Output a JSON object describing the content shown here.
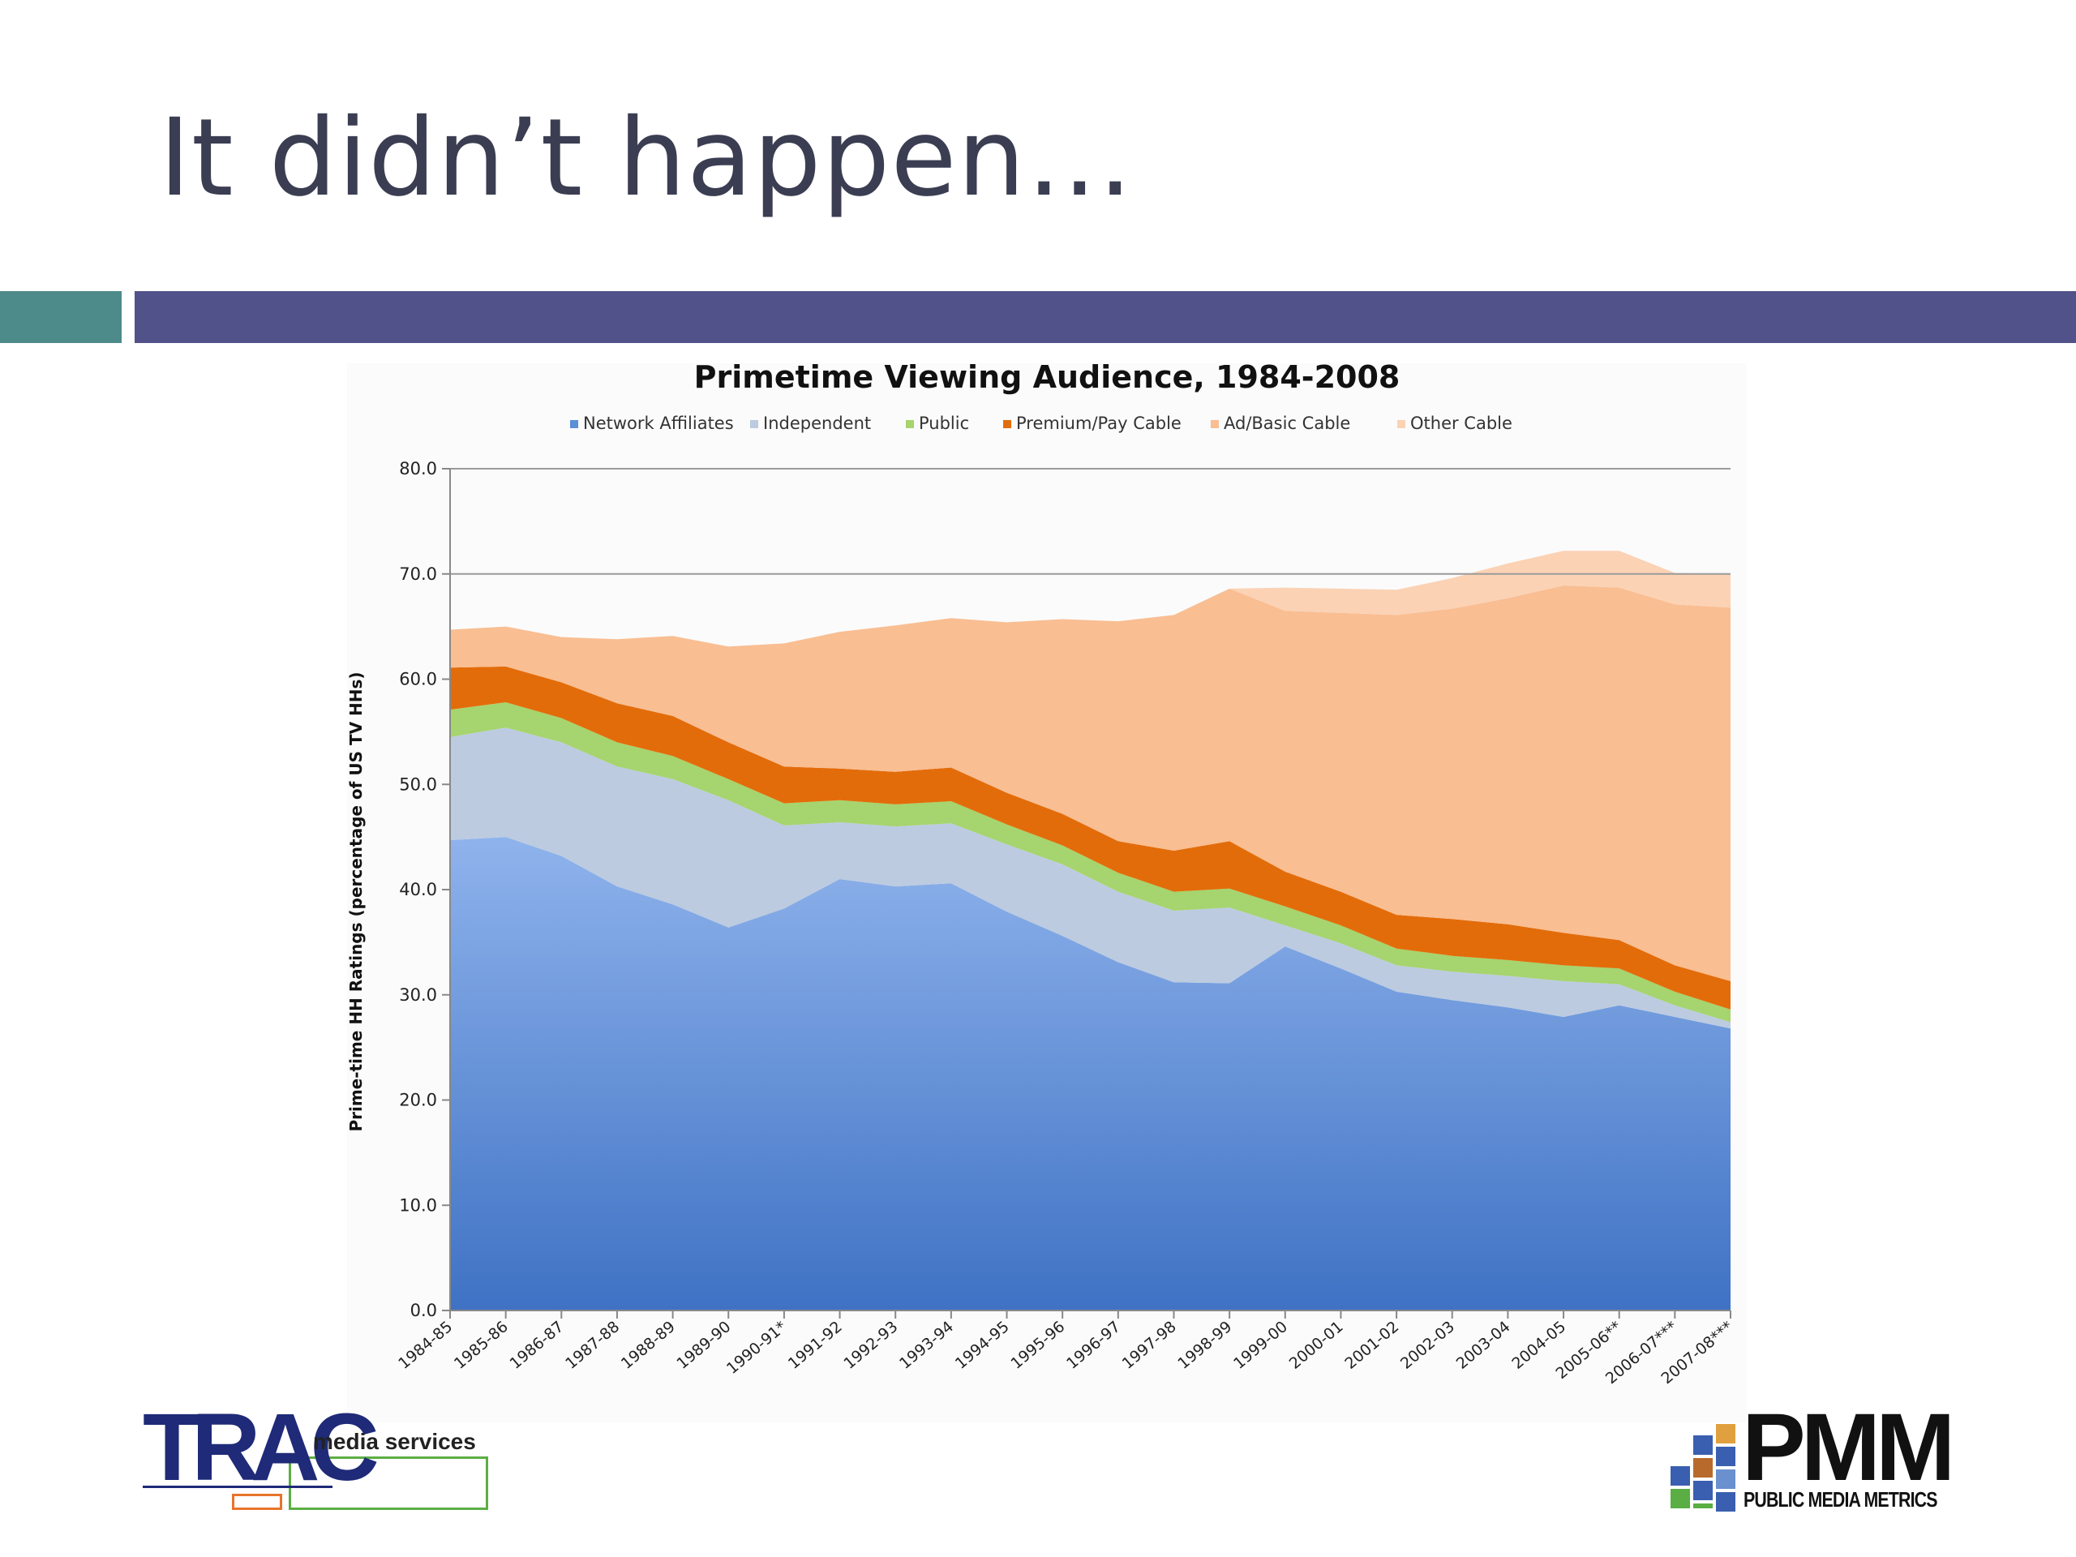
{
  "slide": {
    "title": "It didn’t happen…"
  },
  "colors": {
    "title_text": "#3b3d52",
    "teal_bar": "#4d8a8a",
    "navy_bar": "#52528a"
  },
  "chart_data": {
    "type": "area",
    "stacked": true,
    "title": "Primetime Viewing Audience, 1984-2008",
    "ylabel": "Prime-time HH Ratings (percentage of US TV HHs)",
    "xlabel": "",
    "ylim": [
      0,
      80
    ],
    "yticks": [
      "0.0",
      "10.0",
      "20.0",
      "30.0",
      "40.0",
      "50.0",
      "60.0",
      "70.0",
      "80.0"
    ],
    "ytick_values": [
      0,
      10,
      20,
      30,
      40,
      50,
      60,
      70,
      80
    ],
    "grid_major": [
      70,
      80
    ],
    "legend_position": "top",
    "categories": [
      "1984-85",
      "1985-86",
      "1986-87",
      "1987-88",
      "1988-89",
      "1989-90",
      "1990-91*",
      "1991-92",
      "1992-93",
      "1993-94",
      "1994-95",
      "1995-96",
      "1996-97",
      "1997-98",
      "1998-99",
      "1999-00",
      "2000-01",
      "2001-02",
      "2002-03",
      "2003-04",
      "2004-05",
      "2005-06**",
      "2006-07***",
      "2007-08***"
    ],
    "series": [
      {
        "name": "Network Affiliates",
        "color": "#5b8fd6",
        "values": [
          44.7,
          45.0,
          43.2,
          40.3,
          38.6,
          36.4,
          38.2,
          41.0,
          40.3,
          40.6,
          37.9,
          35.6,
          33.1,
          31.2,
          31.1,
          34.6,
          32.5,
          30.3,
          29.5,
          28.8,
          27.9,
          29.0,
          27.9,
          26.8
        ]
      },
      {
        "name": "Independent",
        "color": "#bccbe0",
        "values": [
          9.8,
          10.4,
          10.8,
          11.4,
          11.9,
          12.1,
          7.9,
          5.4,
          5.7,
          5.7,
          6.4,
          6.8,
          6.7,
          6.8,
          7.2,
          2.0,
          2.4,
          2.5,
          2.7,
          3.0,
          3.4,
          2.0,
          1.1,
          0.6
        ]
      },
      {
        "name": "Public",
        "color": "#a6d46e",
        "values": [
          2.6,
          2.4,
          2.3,
          2.3,
          2.2,
          2.0,
          2.1,
          2.1,
          2.1,
          2.1,
          1.9,
          1.8,
          1.8,
          1.8,
          1.8,
          1.8,
          1.7,
          1.6,
          1.5,
          1.5,
          1.5,
          1.5,
          1.3,
          1.2
        ]
      },
      {
        "name": "Premium/Pay Cable",
        "color": "#e36c0a",
        "values": [
          4.0,
          3.4,
          3.4,
          3.7,
          3.8,
          3.5,
          3.5,
          3.0,
          3.1,
          3.2,
          3.0,
          3.0,
          3.0,
          3.9,
          4.5,
          3.3,
          3.2,
          3.2,
          3.5,
          3.4,
          3.1,
          2.7,
          2.5,
          2.7
        ]
      },
      {
        "name": "Ad/Basic Cable",
        "color": "#f9be92",
        "values": [
          3.6,
          3.8,
          4.3,
          6.1,
          7.6,
          9.1,
          11.7,
          13.0,
          13.9,
          14.2,
          16.2,
          18.5,
          20.9,
          22.4,
          24.0,
          24.8,
          26.5,
          28.5,
          29.5,
          31.0,
          33.0,
          33.5,
          34.3,
          35.5
        ]
      },
      {
        "name": "Other Cable",
        "color": "#fbd2b4",
        "values": [
          0,
          0,
          0,
          0,
          0,
          0,
          0,
          0,
          0,
          0,
          0,
          0,
          0,
          0,
          0,
          2.2,
          2.3,
          2.4,
          2.9,
          3.3,
          3.3,
          3.5,
          3.0,
          3.2
        ]
      }
    ]
  },
  "logos": {
    "trac": {
      "name": "TRAC",
      "tagline": "media services"
    },
    "pmm": {
      "name": "PMM",
      "tagline": "PUBLIC MEDIA METRICS"
    }
  }
}
